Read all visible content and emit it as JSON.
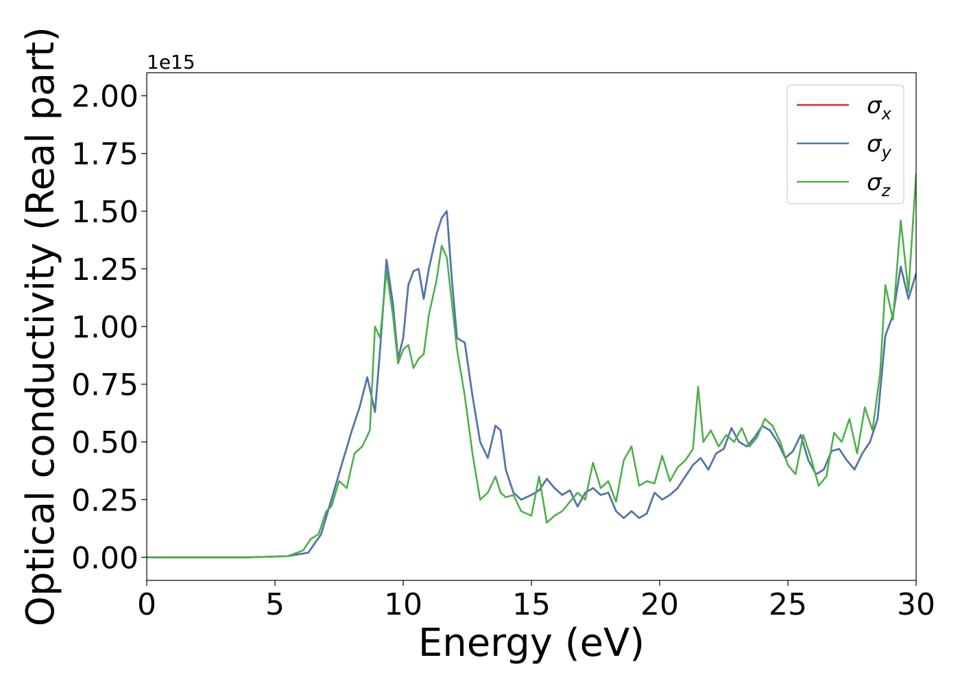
{
  "chart_data": {
    "type": "line",
    "title": "",
    "xlabel": "Energy (eV)",
    "ylabel": "Optical conductivity (Real part)",
    "y_offset_text": "1e15",
    "xlim": [
      0,
      30
    ],
    "ylim": [
      -0.1,
      2.1
    ],
    "x_ticks": [
      0,
      5,
      10,
      15,
      20,
      25,
      30
    ],
    "y_ticks": [
      0.0,
      0.25,
      0.5,
      0.75,
      1.0,
      1.25,
      1.5,
      1.75,
      2.0
    ],
    "y_tick_labels": [
      "0.00",
      "0.25",
      "0.50",
      "0.75",
      "1.00",
      "1.25",
      "1.50",
      "1.75",
      "2.00"
    ],
    "grid": false,
    "legend_position": "upper right",
    "series": [
      {
        "name": "σx",
        "symbol": "σ",
        "subscript": "x",
        "color": "#d62728",
        "x": [
          0,
          4,
          5.5,
          6.3,
          6.8,
          7.2,
          7.6,
          8.0,
          8.3,
          8.6,
          8.9,
          9.1,
          9.35,
          9.6,
          9.8,
          10.0,
          10.2,
          10.4,
          10.6,
          10.8,
          11.0,
          11.3,
          11.5,
          11.7,
          11.9,
          12.1,
          12.4,
          12.7,
          13.0,
          13.3,
          13.6,
          13.8,
          14.0,
          14.3,
          14.6,
          15.0,
          15.3,
          15.6,
          15.9,
          16.2,
          16.5,
          16.8,
          17.1,
          17.4,
          17.7,
          18.0,
          18.3,
          18.6,
          18.9,
          19.2,
          19.5,
          19.8,
          20.1,
          20.4,
          20.7,
          21.0,
          21.3,
          21.6,
          21.9,
          22.2,
          22.5,
          22.8,
          23.1,
          23.4,
          23.7,
          24.0,
          24.3,
          24.6,
          24.9,
          25.2,
          25.5,
          25.8,
          26.1,
          26.4,
          26.7,
          27.0,
          27.3,
          27.6,
          27.9,
          28.2,
          28.5,
          28.8,
          29.1,
          29.4,
          29.7,
          30.0
        ],
        "y": [
          0.0,
          0.0,
          0.005,
          0.02,
          0.1,
          0.25,
          0.4,
          0.55,
          0.65,
          0.78,
          0.63,
          0.9,
          1.29,
          1.1,
          0.86,
          0.95,
          1.18,
          1.24,
          1.25,
          1.12,
          1.25,
          1.4,
          1.47,
          1.5,
          1.2,
          0.95,
          0.93,
          0.7,
          0.5,
          0.43,
          0.57,
          0.55,
          0.38,
          0.28,
          0.25,
          0.27,
          0.29,
          0.34,
          0.3,
          0.27,
          0.29,
          0.22,
          0.28,
          0.3,
          0.27,
          0.28,
          0.2,
          0.17,
          0.2,
          0.17,
          0.19,
          0.28,
          0.25,
          0.27,
          0.3,
          0.35,
          0.4,
          0.43,
          0.38,
          0.45,
          0.47,
          0.56,
          0.5,
          0.48,
          0.52,
          0.57,
          0.55,
          0.5,
          0.43,
          0.46,
          0.53,
          0.42,
          0.36,
          0.38,
          0.46,
          0.47,
          0.42,
          0.38,
          0.45,
          0.5,
          0.6,
          0.96,
          1.05,
          1.26,
          1.12,
          1.23
        ]
      },
      {
        "name": "σy",
        "symbol": "σ",
        "subscript": "y",
        "color": "#4878b0",
        "x": [
          0,
          4,
          5.5,
          6.3,
          6.8,
          7.2,
          7.6,
          8.0,
          8.3,
          8.6,
          8.9,
          9.1,
          9.35,
          9.6,
          9.8,
          10.0,
          10.2,
          10.4,
          10.6,
          10.8,
          11.0,
          11.3,
          11.5,
          11.7,
          11.9,
          12.1,
          12.4,
          12.7,
          13.0,
          13.3,
          13.6,
          13.8,
          14.0,
          14.3,
          14.6,
          15.0,
          15.3,
          15.6,
          15.9,
          16.2,
          16.5,
          16.8,
          17.1,
          17.4,
          17.7,
          18.0,
          18.3,
          18.6,
          18.9,
          19.2,
          19.5,
          19.8,
          20.1,
          20.4,
          20.7,
          21.0,
          21.3,
          21.6,
          21.9,
          22.2,
          22.5,
          22.8,
          23.1,
          23.4,
          23.7,
          24.0,
          24.3,
          24.6,
          24.9,
          25.2,
          25.5,
          25.8,
          26.1,
          26.4,
          26.7,
          27.0,
          27.3,
          27.6,
          27.9,
          28.2,
          28.5,
          28.8,
          29.1,
          29.4,
          29.7,
          30.0
        ],
        "y": [
          0.0,
          0.0,
          0.005,
          0.02,
          0.1,
          0.25,
          0.4,
          0.55,
          0.65,
          0.78,
          0.63,
          0.9,
          1.29,
          1.1,
          0.86,
          0.95,
          1.18,
          1.24,
          1.25,
          1.12,
          1.25,
          1.4,
          1.47,
          1.5,
          1.2,
          0.95,
          0.93,
          0.7,
          0.5,
          0.43,
          0.57,
          0.55,
          0.38,
          0.28,
          0.25,
          0.27,
          0.29,
          0.34,
          0.3,
          0.27,
          0.29,
          0.22,
          0.28,
          0.3,
          0.27,
          0.28,
          0.2,
          0.17,
          0.2,
          0.17,
          0.19,
          0.28,
          0.25,
          0.27,
          0.3,
          0.35,
          0.4,
          0.43,
          0.38,
          0.45,
          0.47,
          0.56,
          0.5,
          0.48,
          0.52,
          0.57,
          0.55,
          0.5,
          0.43,
          0.46,
          0.53,
          0.42,
          0.36,
          0.38,
          0.46,
          0.47,
          0.42,
          0.38,
          0.45,
          0.5,
          0.6,
          0.96,
          1.05,
          1.26,
          1.12,
          1.23
        ]
      },
      {
        "name": "σz",
        "symbol": "σ",
        "subscript": "z",
        "color": "#4daf4a",
        "x": [
          0,
          4,
          5.5,
          6.1,
          6.4,
          6.7,
          7.0,
          7.2,
          7.5,
          7.8,
          8.1,
          8.4,
          8.7,
          8.9,
          9.1,
          9.35,
          9.6,
          9.8,
          10.0,
          10.2,
          10.4,
          10.6,
          10.8,
          11.0,
          11.3,
          11.5,
          11.7,
          11.9,
          12.1,
          12.4,
          12.7,
          13.0,
          13.3,
          13.6,
          13.8,
          14.0,
          14.3,
          14.6,
          15.0,
          15.3,
          15.6,
          15.9,
          16.2,
          16.5,
          16.8,
          17.1,
          17.4,
          17.7,
          18.0,
          18.3,
          18.6,
          18.9,
          19.2,
          19.5,
          19.8,
          20.1,
          20.4,
          20.7,
          21.0,
          21.3,
          21.5,
          21.7,
          22.0,
          22.3,
          22.6,
          22.9,
          23.2,
          23.5,
          23.8,
          24.1,
          24.4,
          24.7,
          25.0,
          25.3,
          25.6,
          25.9,
          26.2,
          26.5,
          26.8,
          27.1,
          27.4,
          27.7,
          28.0,
          28.3,
          28.6,
          28.8,
          29.1,
          29.4,
          29.7,
          30.0
        ],
        "y": [
          0.0,
          0.0,
          0.005,
          0.03,
          0.08,
          0.1,
          0.2,
          0.22,
          0.33,
          0.3,
          0.45,
          0.48,
          0.55,
          1.0,
          0.95,
          1.24,
          1.05,
          0.84,
          0.9,
          0.92,
          0.82,
          0.86,
          0.88,
          1.05,
          1.2,
          1.35,
          1.3,
          1.1,
          0.9,
          0.7,
          0.45,
          0.25,
          0.28,
          0.35,
          0.28,
          0.26,
          0.27,
          0.2,
          0.18,
          0.35,
          0.15,
          0.18,
          0.2,
          0.24,
          0.28,
          0.25,
          0.41,
          0.3,
          0.33,
          0.24,
          0.42,
          0.48,
          0.31,
          0.33,
          0.32,
          0.44,
          0.33,
          0.39,
          0.42,
          0.47,
          0.74,
          0.5,
          0.55,
          0.48,
          0.53,
          0.5,
          0.56,
          0.48,
          0.52,
          0.6,
          0.57,
          0.5,
          0.4,
          0.36,
          0.53,
          0.43,
          0.31,
          0.35,
          0.54,
          0.5,
          0.6,
          0.45,
          0.65,
          0.55,
          0.8,
          1.18,
          1.03,
          1.46,
          1.15,
          1.66
        ]
      }
    ]
  }
}
